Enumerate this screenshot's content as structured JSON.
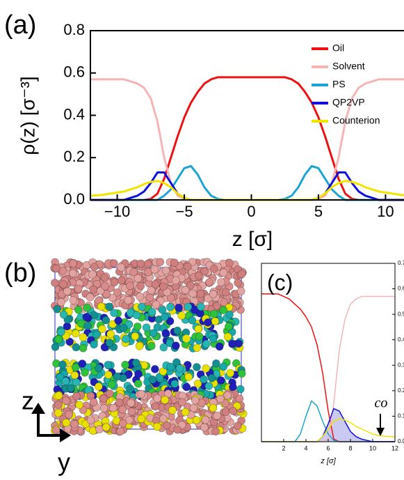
{
  "chart_data": [
    {
      "type": "line",
      "panel_label": "(a)",
      "x_label": "z [σ]",
      "y_label": "ρ(z) [σ⁻³]",
      "legend": "upper right",
      "xlim": [
        -12,
        12
      ],
      "xticks": [
        {
          "value": -10,
          "label": "−10"
        },
        {
          "value": -5,
          "label": "−5"
        },
        0,
        5,
        10
      ],
      "ylim": [
        0,
        0.8
      ],
      "yticks": [
        {
          "value": 0,
          "label": "0.0"
        },
        0.2,
        0.4,
        0.6,
        0.8
      ],
      "x": [
        -12,
        -11.5,
        -11,
        -10.5,
        -10,
        -9.5,
        -9,
        -8.5,
        -8,
        -7.5,
        -7,
        -6.5,
        -6,
        -5.5,
        -5,
        -4.5,
        -4,
        -3.5,
        -3,
        -2.5,
        -2,
        -1.5,
        -1,
        -0.5,
        0,
        0.5,
        1,
        1.5,
        2,
        2.5,
        3,
        3.5,
        4,
        4.5,
        5,
        5.5,
        6,
        6.5,
        7,
        7.5,
        8,
        8.5,
        9,
        9.5,
        10,
        10.5,
        11,
        11.5,
        12
      ],
      "series": [
        {
          "name": "Oil",
          "color": "#ee1111",
          "values": [
            0,
            0,
            0,
            0,
            0,
            0,
            0,
            0,
            0,
            0.005,
            0.03,
            0.1,
            0.2,
            0.3,
            0.39,
            0.46,
            0.51,
            0.55,
            0.57,
            0.58,
            0.58,
            0.58,
            0.58,
            0.58,
            0.58,
            0.58,
            0.58,
            0.58,
            0.58,
            0.58,
            0.57,
            0.55,
            0.51,
            0.46,
            0.39,
            0.3,
            0.2,
            0.1,
            0.03,
            0.005,
            0,
            0,
            0,
            0,
            0,
            0,
            0,
            0,
            0
          ]
        },
        {
          "name": "Solvent",
          "color": "#f5b5b5",
          "values": [
            0.57,
            0.57,
            0.57,
            0.57,
            0.57,
            0.57,
            0.56,
            0.55,
            0.53,
            0.48,
            0.37,
            0.2,
            0.08,
            0.02,
            0.005,
            0,
            0,
            0,
            0,
            0,
            0,
            0,
            0,
            0,
            0,
            0,
            0,
            0,
            0,
            0,
            0,
            0,
            0,
            0,
            0.005,
            0.02,
            0.08,
            0.2,
            0.37,
            0.48,
            0.53,
            0.55,
            0.56,
            0.57,
            0.57,
            0.57,
            0.57,
            0.57,
            0.57
          ]
        },
        {
          "name": "PS",
          "color": "#1ba3d3",
          "values": [
            0,
            0,
            0,
            0,
            0,
            0,
            0,
            0,
            0,
            0,
            0,
            0.02,
            0.05,
            0.1,
            0.15,
            0.16,
            0.12,
            0.06,
            0.02,
            0.005,
            0,
            0,
            0,
            0,
            0,
            0,
            0,
            0,
            0,
            0.005,
            0.02,
            0.06,
            0.12,
            0.16,
            0.15,
            0.1,
            0.05,
            0.02,
            0,
            0,
            0,
            0,
            0,
            0,
            0,
            0,
            0,
            0,
            0
          ]
        },
        {
          "name": "QP2VP",
          "color": "#1010dd",
          "values": [
            0,
            0,
            0,
            0,
            0,
            0,
            0.01,
            0.02,
            0.04,
            0.08,
            0.13,
            0.13,
            0.08,
            0.03,
            0.01,
            0,
            0,
            0,
            0,
            0,
            0,
            0,
            0,
            0,
            0,
            0,
            0,
            0,
            0,
            0,
            0,
            0,
            0,
            0,
            0.01,
            0.03,
            0.08,
            0.13,
            0.13,
            0.08,
            0.04,
            0.02,
            0.01,
            0,
            0,
            0,
            0,
            0,
            0
          ]
        },
        {
          "name": "Counterion",
          "color": "#f2e300",
          "values": [
            0.02,
            0.022,
            0.025,
            0.03,
            0.035,
            0.04,
            0.05,
            0.06,
            0.075,
            0.085,
            0.09,
            0.08,
            0.06,
            0.03,
            0.01,
            0,
            0,
            0,
            0,
            0,
            0,
            0,
            0,
            0,
            0,
            0,
            0,
            0,
            0,
            0,
            0,
            0,
            0,
            0,
            0.01,
            0.03,
            0.06,
            0.08,
            0.09,
            0.085,
            0.075,
            0.06,
            0.05,
            0.04,
            0.035,
            0.03,
            0.025,
            0.022,
            0.02
          ]
        }
      ]
    },
    {
      "type": "image",
      "panel_label": "(b)",
      "axis_labels": [
        "z",
        "y"
      ]
    },
    {
      "type": "line",
      "panel_label": "(c)",
      "x_label": "z [σ]",
      "annotation": "co",
      "xlim": [
        0,
        12
      ],
      "xticks": [
        2,
        4,
        6,
        8,
        10,
        12
      ],
      "ylim": [
        0,
        0.7
      ],
      "yticks": [
        {
          "value": 0,
          "label": "0.0"
        },
        0.1,
        0.2,
        0.3,
        0.4,
        0.5,
        0.6,
        0.7
      ],
      "x": [
        0,
        0.5,
        1,
        1.5,
        2,
        2.5,
        3,
        3.5,
        4,
        4.5,
        5,
        5.5,
        6,
        6.5,
        7,
        7.5,
        8,
        8.5,
        9,
        9.5,
        10,
        10.5,
        11,
        11.5,
        12
      ],
      "series": [
        {
          "name": "Oil",
          "color": "#ee1111",
          "values": [
            0.58,
            0.58,
            0.58,
            0.58,
            0.57,
            0.56,
            0.54,
            0.52,
            0.49,
            0.45,
            0.38,
            0.27,
            0.12,
            0.01,
            0,
            0,
            0,
            0,
            0,
            0,
            0,
            0,
            0,
            0,
            0
          ]
        },
        {
          "name": "Solvent",
          "color": "#f5b5b5",
          "values": [
            0,
            0,
            0,
            0,
            0,
            0,
            0,
            0,
            0,
            0,
            0,
            0,
            0.01,
            0.15,
            0.36,
            0.48,
            0.54,
            0.56,
            0.57,
            0.57,
            0.57,
            0.57,
            0.57,
            0.57,
            0.57
          ]
        },
        {
          "name": "PS",
          "color": "#1ba3d3",
          "values": [
            0,
            0,
            0,
            0,
            0,
            0,
            0,
            0.03,
            0.1,
            0.16,
            0.14,
            0.08,
            0.03,
            0.005,
            0,
            0,
            0,
            0,
            0,
            0,
            0,
            0,
            0,
            0,
            0
          ]
        },
        {
          "name": "QP2VP",
          "color": "#1010dd",
          "fill": "#c9c9f2",
          "values": [
            0,
            0,
            0,
            0,
            0,
            0,
            0,
            0,
            0,
            0,
            0,
            0.02,
            0.07,
            0.13,
            0.12,
            0.08,
            0.04,
            0.02,
            0.01,
            0.005,
            0,
            0,
            0,
            0,
            0
          ]
        },
        {
          "name": "Counterion",
          "color": "#f2e300",
          "values": [
            0,
            0,
            0,
            0,
            0,
            0,
            0,
            0,
            0,
            0,
            0,
            0.02,
            0.05,
            0.08,
            0.09,
            0.085,
            0.075,
            0.06,
            0.05,
            0.04,
            0.03,
            0.025,
            0.022,
            0.02,
            0.02
          ]
        }
      ]
    }
  ]
}
